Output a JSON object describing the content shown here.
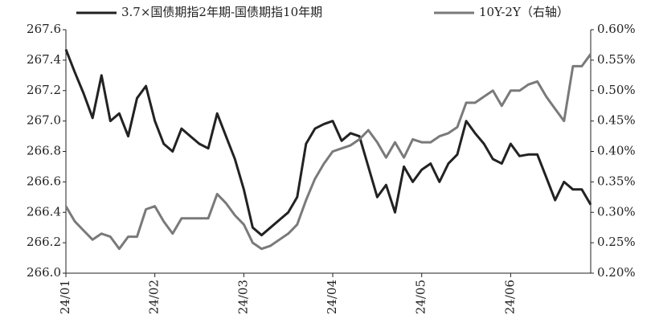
{
  "chart_data": {
    "type": "line",
    "categories": [
      "24/01",
      null,
      null,
      null,
      null,
      null,
      null,
      null,
      null,
      null,
      "24/02",
      null,
      null,
      null,
      null,
      null,
      null,
      null,
      null,
      null,
      "24/03",
      null,
      null,
      null,
      null,
      null,
      null,
      null,
      null,
      null,
      "24/04",
      null,
      null,
      null,
      null,
      null,
      null,
      null,
      null,
      null,
      "24/05",
      null,
      null,
      null,
      null,
      null,
      null,
      null,
      null,
      null,
      "24/06",
      null,
      null,
      null,
      null,
      null,
      null,
      null,
      null,
      null
    ],
    "series": [
      {
        "name": "3.7×国债期指2年期-国债期指10年期",
        "color": "#222222",
        "values": [
          267.47,
          267.32,
          267.18,
          267.02,
          267.3,
          267.0,
          267.05,
          266.9,
          267.15,
          267.23,
          267.0,
          266.85,
          266.8,
          266.95,
          266.9,
          266.85,
          266.82,
          267.05,
          266.9,
          266.75,
          266.55,
          266.3,
          266.25,
          266.3,
          266.35,
          266.4,
          266.5,
          266.85,
          266.95,
          266.98,
          267.0,
          266.87,
          266.92,
          266.9,
          266.7,
          266.5,
          266.58,
          266.4,
          266.7,
          266.6,
          266.68,
          266.72,
          266.6,
          266.72,
          266.78,
          267.0,
          266.92,
          266.85,
          266.75,
          266.72,
          266.85,
          266.77,
          266.78,
          266.78,
          266.63,
          266.48,
          266.6,
          266.55,
          266.55,
          266.45
        ]
      },
      {
        "name": "10Y-2Y（右轴）",
        "color": "#7a7a7a",
        "axis": "y2",
        "values": [
          0.31,
          0.285,
          0.27,
          0.255,
          0.265,
          0.26,
          0.24,
          0.26,
          0.26,
          0.305,
          0.31,
          0.285,
          0.265,
          0.29,
          0.29,
          0.29,
          0.29,
          0.33,
          0.315,
          0.295,
          0.28,
          0.25,
          0.24,
          0.245,
          0.255,
          0.265,
          0.28,
          0.32,
          0.355,
          0.38,
          0.4,
          0.405,
          0.41,
          0.42,
          0.435,
          0.415,
          0.39,
          0.415,
          0.39,
          0.42,
          0.415,
          0.415,
          0.425,
          0.43,
          0.44,
          0.48,
          0.48,
          0.49,
          0.5,
          0.475,
          0.5,
          0.5,
          0.51,
          0.515,
          0.49,
          0.47,
          0.45,
          0.54,
          0.54,
          0.56
        ]
      }
    ],
    "ylim": [
      266.0,
      267.6
    ],
    "yticks": [
      {
        "value": 266.0,
        "label": "266.0"
      },
      266.2,
      266.4,
      266.6,
      266.8,
      {
        "value": 267.0,
        "label": "267.0"
      },
      267.2,
      267.4,
      267.6
    ],
    "y2lim": [
      0.2,
      0.6
    ],
    "y2ticks": [
      {
        "value": 0.2,
        "label": "0.20%"
      },
      {
        "value": 0.25,
        "label": "0.25%"
      },
      {
        "value": 0.3,
        "label": "0.30%"
      },
      {
        "value": 0.35,
        "label": "0.35%"
      },
      {
        "value": 0.4,
        "label": "0.40%"
      },
      {
        "value": 0.45,
        "label": "0.45%"
      },
      {
        "value": 0.5,
        "label": "0.50%"
      },
      {
        "value": 0.55,
        "label": "0.55%"
      },
      {
        "value": 0.6,
        "label": "0.60%"
      }
    ],
    "legend": "top",
    "grid": false
  }
}
